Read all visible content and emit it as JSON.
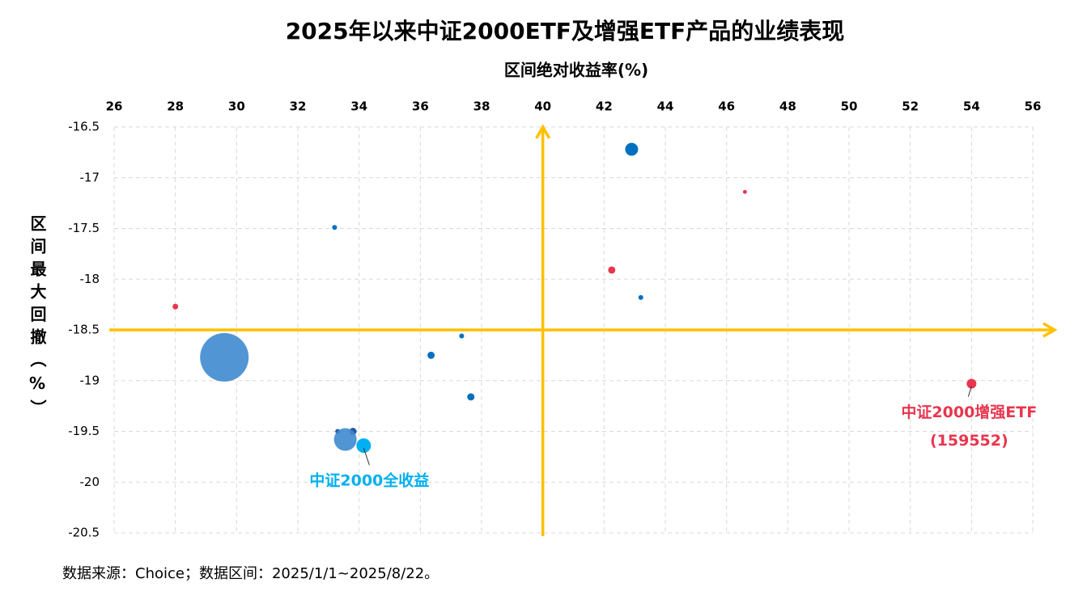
{
  "chart_data": {
    "type": "scatter",
    "title": "2025年以来中证2000ETF及增强ETF产品的业绩表现",
    "x_label": "区间绝对收益率(%)",
    "y_label": "区间最大回撤（%）",
    "source": "数据来源：Choice；数据区间：2025/1/1~2025/8/22。",
    "x": [
      42.9,
      46.6,
      33.2,
      42.25,
      43.2,
      28.0,
      29.6,
      37.35,
      36.35,
      37.65,
      33.8,
      33.3,
      33.55,
      34.15,
      54.0
    ],
    "values": [
      -16.72,
      -17.14,
      -17.49,
      -17.91,
      -18.18,
      -18.27,
      -18.77,
      -18.56,
      -18.75,
      -19.16,
      -19.5,
      -19.5,
      -19.58,
      -19.64,
      -19.03
    ],
    "sizes": [
      64,
      6,
      9,
      20,
      9,
      12,
      900,
      9,
      20,
      20,
      20,
      9,
      196,
      81,
      36
    ],
    "colors": [
      "#0070c0",
      "#e8364f",
      "#0070c0",
      "#e8364f",
      "#0070c0",
      "#e8364f",
      "#3f8ad0",
      "#0070c0",
      "#0070c0",
      "#0070c0",
      "#1f5f9f",
      "#1f5f9f",
      "#3f8ad0",
      "#00b0f0",
      "#e8364f"
    ],
    "annotations": [
      {
        "point": 13,
        "lines": [
          "中证2000全收益"
        ],
        "color": "#00b0f0"
      },
      {
        "point": 14,
        "lines": [
          "中证2000增强ETF",
          "(159552)"
        ],
        "color": "#e8364f"
      }
    ],
    "reference_lines": {
      "x": 40,
      "y": -18.5,
      "color": "#ffc000"
    },
    "xlim": [
      26,
      56
    ],
    "xticks": [
      26,
      28,
      30,
      32,
      34,
      36,
      38,
      40,
      42,
      44,
      46,
      48,
      50,
      52,
      54,
      56
    ],
    "ylim": [
      -20.5,
      -16.5
    ],
    "yticks": [
      -16.5,
      -17,
      -17.5,
      -18,
      -18.5,
      -19,
      -19.5,
      -20,
      -20.5
    ],
    "grid": true
  }
}
